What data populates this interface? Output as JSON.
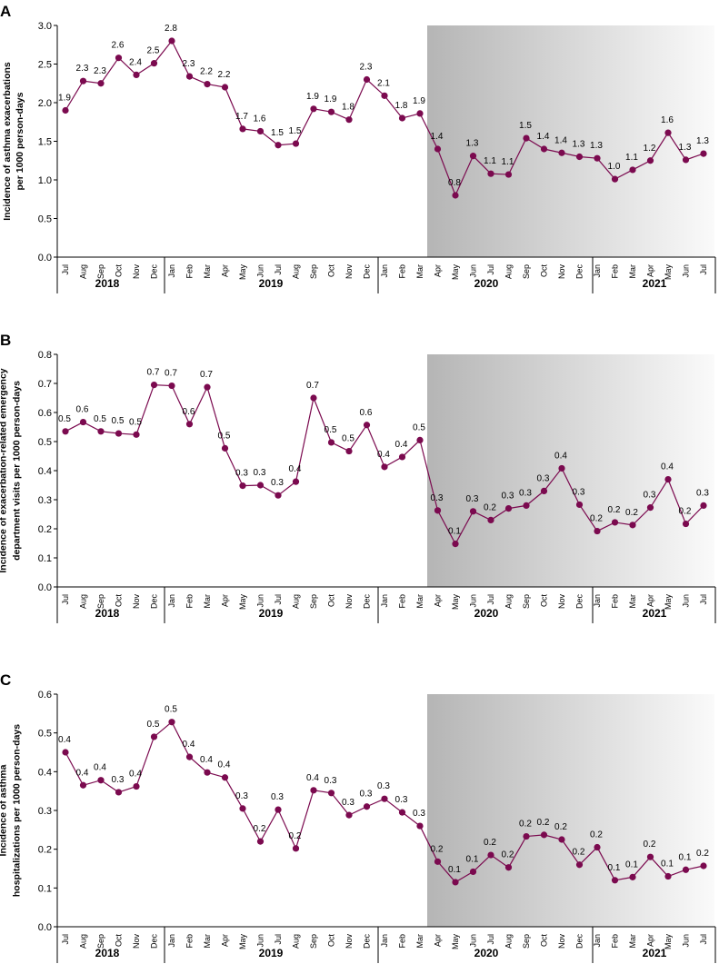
{
  "style": {
    "series_color": "#7b0a4f",
    "axis_color": "#000000",
    "shade_dark": "#b5b5b5",
    "shade_light": "#fafafa"
  },
  "shading_note": "Shaded region spans Apr 2020 through Jul 2021",
  "chart_data": [
    {
      "type": "line",
      "panel_label": "A",
      "ylabel_line1": "Incidence of asthma exacerbations",
      "ylabel_line2": "per 1000 person-days",
      "ylim": [
        0,
        3
      ],
      "yticks": [
        "0.0",
        "0.5",
        "1.0",
        "1.5",
        "2.0",
        "2.5",
        "3.0"
      ],
      "months": [
        "Jul",
        "Aug",
        "Sep",
        "Oct",
        "Nov",
        "Dec",
        "Jan",
        "Feb",
        "Mar",
        "Apr",
        "May",
        "Jun",
        "Jul",
        "Aug",
        "Sep",
        "Oct",
        "Nov",
        "Dec",
        "Jan",
        "Feb",
        "Mar",
        "Apr",
        "May",
        "Jun",
        "Jul",
        "Aug",
        "Sep",
        "Oct",
        "Nov",
        "Dec",
        "Jan",
        "Feb",
        "Mar",
        "Apr",
        "May",
        "Jun",
        "Jul"
      ],
      "years": [
        "2018",
        "2019",
        "2020",
        "2021"
      ],
      "values": [
        1.9,
        2.28,
        2.25,
        2.58,
        2.36,
        2.51,
        2.8,
        2.34,
        2.24,
        2.2,
        1.66,
        1.63,
        1.45,
        1.47,
        1.92,
        1.88,
        1.78,
        2.3,
        2.09,
        1.8,
        1.86,
        1.4,
        0.8,
        1.31,
        1.08,
        1.07,
        1.54,
        1.4,
        1.35,
        1.3,
        1.28,
        1.01,
        1.13,
        1.25,
        1.61,
        1.26,
        1.34
      ],
      "labels": [
        "1.9",
        "2.3",
        "2.3",
        "2.6",
        "2.4",
        "2.5",
        "2.8",
        "2.3",
        "2.2",
        "2.2",
        "1.7",
        "1.6",
        "1.5",
        "1.5",
        "1.9",
        "1.9",
        "1.8",
        "2.3",
        "2.1",
        "1.8",
        "1.9",
        "1.4",
        "0.8",
        "1.3",
        "1.1",
        "1.1",
        "1.5",
        "1.4",
        "1.4",
        "1.3",
        "1.3",
        "1.0",
        "1.1",
        "1.2",
        "1.6",
        "1.3",
        "1.3"
      ]
    },
    {
      "type": "line",
      "panel_label": "B",
      "ylabel_line1": "Incidence of exacerbation-related emergency",
      "ylabel_line2": "department visits per 1000 person-days",
      "ylim": [
        0,
        0.8
      ],
      "yticks": [
        "0.0",
        "0.1",
        "0.2",
        "0.3",
        "0.4",
        "0.5",
        "0.6",
        "0.7",
        "0.8"
      ],
      "months": [
        "Jul",
        "Aug",
        "Sep",
        "Oct",
        "Nov",
        "Dec",
        "Jan",
        "Feb",
        "Mar",
        "Apr",
        "May",
        "Jun",
        "Jul",
        "Aug",
        "Sep",
        "Oct",
        "Nov",
        "Dec",
        "Jan",
        "Feb",
        "Mar",
        "Apr",
        "May",
        "Jun",
        "Jul",
        "Aug",
        "Sep",
        "Oct",
        "Nov",
        "Dec",
        "Jan",
        "Feb",
        "Mar",
        "Apr",
        "May",
        "Jun",
        "Jul"
      ],
      "years": [
        "2018",
        "2019",
        "2020",
        "2021"
      ],
      "values": [
        0.535,
        0.567,
        0.535,
        0.528,
        0.524,
        0.695,
        0.692,
        0.56,
        0.687,
        0.477,
        0.348,
        0.35,
        0.315,
        0.362,
        0.65,
        0.497,
        0.467,
        0.557,
        0.413,
        0.447,
        0.505,
        0.263,
        0.148,
        0.26,
        0.23,
        0.27,
        0.28,
        0.33,
        0.408,
        0.283,
        0.192,
        0.222,
        0.213,
        0.273,
        0.37,
        0.217,
        0.28
      ],
      "labels": [
        "0.5",
        "0.6",
        "0.5",
        "0.5",
        "0.5",
        "0.7",
        "0.7",
        "0.6",
        "0.7",
        "0.5",
        "0.3",
        "0.3",
        "0.3",
        "0.4",
        "0.7",
        "0.5",
        "0.5",
        "0.6",
        "0.4",
        "0.4",
        "0.5",
        "0.3",
        "0.1",
        "0.3",
        "0.2",
        "0.3",
        "0.3",
        "0.3",
        "0.4",
        "0.3",
        "0.2",
        "0.2",
        "0.2",
        "0.3",
        "0.4",
        "0.2",
        "0.3"
      ]
    },
    {
      "type": "line",
      "panel_label": "C",
      "ylabel_line1": "Incidence of asthma",
      "ylabel_line2": "hospitalizations per 1000 person-days",
      "ylim": [
        0,
        0.6
      ],
      "yticks": [
        "0.0",
        "0.1",
        "0.2",
        "0.3",
        "0.4",
        "0.5",
        "0.6"
      ],
      "months": [
        "Jul",
        "Aug",
        "Sep",
        "Oct",
        "Nov",
        "Dec",
        "Jan",
        "Feb",
        "Mar",
        "Apr",
        "May",
        "Jun",
        "Jul",
        "Aug",
        "Sep",
        "Oct",
        "Nov",
        "Dec",
        "Jan",
        "Feb",
        "Mar",
        "Apr",
        "May",
        "Jun",
        "Jul",
        "Aug",
        "Sep",
        "Oct",
        "Nov",
        "Dec",
        "Jan",
        "Feb",
        "Mar",
        "Apr",
        "May",
        "Jun",
        "Jul"
      ],
      "years": [
        "2018",
        "2019",
        "2020",
        "2021"
      ],
      "values": [
        0.45,
        0.365,
        0.378,
        0.347,
        0.362,
        0.49,
        0.528,
        0.438,
        0.398,
        0.385,
        0.305,
        0.22,
        0.302,
        0.202,
        0.352,
        0.345,
        0.288,
        0.31,
        0.33,
        0.295,
        0.26,
        0.168,
        0.115,
        0.142,
        0.185,
        0.153,
        0.233,
        0.237,
        0.225,
        0.16,
        0.205,
        0.12,
        0.128,
        0.18,
        0.13,
        0.147,
        0.157
      ],
      "labels": [
        "0.4",
        "0.4",
        "0.4",
        "0.3",
        "0.4",
        "0.5",
        "0.5",
        "0.4",
        "0.4",
        "0.4",
        "0.3",
        "0.2",
        "0.3",
        "0.2",
        "0.4",
        "0.3",
        "0.3",
        "0.3",
        "0.3",
        "0.3",
        "0.3",
        "0.2",
        "0.1",
        "0.1",
        "0.2",
        "0.2",
        "0.2",
        "0.2",
        "0.2",
        "0.2",
        "0.2",
        "0.1",
        "0.1",
        "0.2",
        "0.1",
        "0.1",
        "0.2"
      ]
    }
  ]
}
